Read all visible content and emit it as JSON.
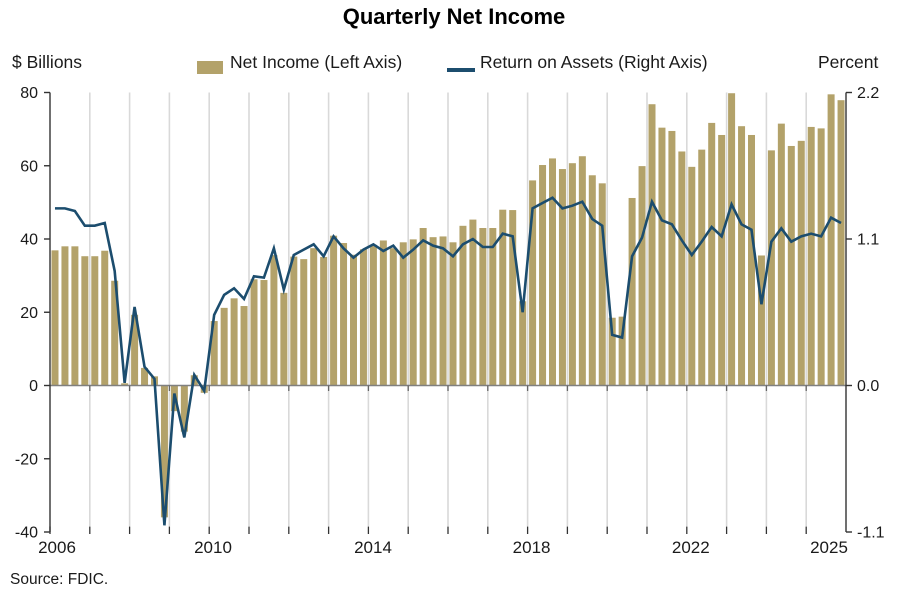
{
  "chart_data": {
    "type": "bar+line",
    "title": "Quarterly Net Income",
    "source": "Source: FDIC.",
    "frequency": "quarterly",
    "x_start": "2006 Q1",
    "x_end": "2025 Q4",
    "legend": [
      {
        "label": "Net Income (Left Axis)",
        "type": "bar",
        "color": "#b3a26a"
      },
      {
        "label": "Return on Assets (Right Axis)",
        "type": "line",
        "color": "#1c4d6e"
      }
    ],
    "left_axis": {
      "label": "$ Billions",
      "ticks": [
        80,
        60,
        40,
        20,
        0,
        -20,
        -40
      ],
      "range": [
        -40,
        80
      ]
    },
    "right_axis": {
      "label": "Percent",
      "ticks": [
        "2.2",
        "1.1",
        "0.0",
        "-1.1"
      ],
      "range": [
        -1.1,
        2.2
      ]
    },
    "x_axis": {
      "tick_labels": [
        "2006",
        "2010",
        "2014",
        "2018",
        "2022",
        "2025"
      ],
      "gridlines": "yearly"
    },
    "series_notes": "net_income in $ billions (bars, left axis); return_on_assets in percent (line, right axis)",
    "years": [
      {
        "year": 2006,
        "net_income": [
          36.9,
          38.0,
          38.0,
          35.3
        ],
        "return_on_assets": [
          1.33,
          1.33,
          1.31,
          1.2
        ]
      },
      {
        "year": 2007,
        "net_income": [
          35.3,
          36.8,
          28.6,
          0.6
        ],
        "return_on_assets": [
          1.2,
          1.22,
          0.86,
          0.02
        ]
      },
      {
        "year": 2008,
        "net_income": [
          19.3,
          4.8,
          2.5,
          -36.0
        ],
        "return_on_assets": [
          0.59,
          0.14,
          0.05,
          -1.05
        ]
      },
      {
        "year": 2009,
        "net_income": [
          -7.0,
          -12.6,
          2.8,
          -2.0
        ],
        "return_on_assets": [
          -0.06,
          -0.39,
          0.08,
          -0.04
        ]
      },
      {
        "year": 2010,
        "net_income": [
          17.6,
          21.2,
          23.8,
          21.7
        ],
        "return_on_assets": [
          0.53,
          0.68,
          0.73,
          0.65
        ]
      },
      {
        "year": 2011,
        "net_income": [
          29.0,
          28.8,
          35.6,
          25.3
        ],
        "return_on_assets": [
          0.82,
          0.81,
          1.03,
          0.72
        ]
      },
      {
        "year": 2012,
        "net_income": [
          35.2,
          34.5,
          37.5,
          35.1
        ],
        "return_on_assets": [
          0.98,
          1.02,
          1.06,
          0.97
        ]
      },
      {
        "year": 2013,
        "net_income": [
          40.9,
          38.9,
          35.7,
          37.2
        ],
        "return_on_assets": [
          1.12,
          1.03,
          0.96,
          1.02
        ]
      },
      {
        "year": 2014,
        "net_income": [
          38.4,
          39.6,
          37.5,
          39.1
        ],
        "return_on_assets": [
          1.06,
          1.01,
          1.05,
          0.96
        ]
      },
      {
        "year": 2015,
        "net_income": [
          39.9,
          43.0,
          40.5,
          40.7
        ],
        "return_on_assets": [
          1.02,
          1.09,
          1.05,
          1.03
        ]
      },
      {
        "year": 2016,
        "net_income": [
          39.1,
          43.6,
          45.3,
          43.0
        ],
        "return_on_assets": [
          0.97,
          1.06,
          1.1,
          1.04
        ]
      },
      {
        "year": 2017,
        "net_income": [
          43.0,
          48.0,
          47.9,
          23.0
        ],
        "return_on_assets": [
          1.04,
          1.14,
          1.12,
          0.55
        ]
      },
      {
        "year": 2018,
        "net_income": [
          56.0,
          60.2,
          62.0,
          59.1
        ],
        "return_on_assets": [
          1.33,
          1.37,
          1.41,
          1.33
        ]
      },
      {
        "year": 2019,
        "net_income": [
          60.7,
          62.6,
          57.4,
          55.2
        ],
        "return_on_assets": [
          1.35,
          1.38,
          1.25,
          1.2
        ]
      },
      {
        "year": 2020,
        "net_income": [
          18.5,
          18.8,
          51.2,
          59.9
        ],
        "return_on_assets": [
          0.38,
          0.36,
          0.97,
          1.11
        ]
      },
      {
        "year": 2021,
        "net_income": [
          76.8,
          70.4,
          69.5,
          63.9
        ],
        "return_on_assets": [
          1.38,
          1.24,
          1.21,
          1.09
        ]
      },
      {
        "year": 2022,
        "net_income": [
          59.7,
          64.4,
          71.7,
          68.4
        ],
        "return_on_assets": [
          0.98,
          1.08,
          1.19,
          1.12
        ]
      },
      {
        "year": 2023,
        "net_income": [
          79.8,
          70.8,
          68.4,
          35.5
        ],
        "return_on_assets": [
          1.36,
          1.21,
          1.17,
          0.61
        ]
      },
      {
        "year": 2024,
        "net_income": [
          64.2,
          71.5,
          65.4,
          66.8
        ],
        "return_on_assets": [
          1.08,
          1.18,
          1.08,
          1.12
        ]
      },
      {
        "year": 2025,
        "net_income": [
          70.6,
          70.2,
          79.5,
          77.9
        ],
        "return_on_assets": [
          1.14,
          1.12,
          1.26,
          1.22
        ]
      }
    ],
    "colors": {
      "bar": "#b3a26a",
      "line": "#1c4d6e",
      "gridline": "#d9d9d9",
      "zero_line": "#808080",
      "axis": "#333333"
    }
  }
}
